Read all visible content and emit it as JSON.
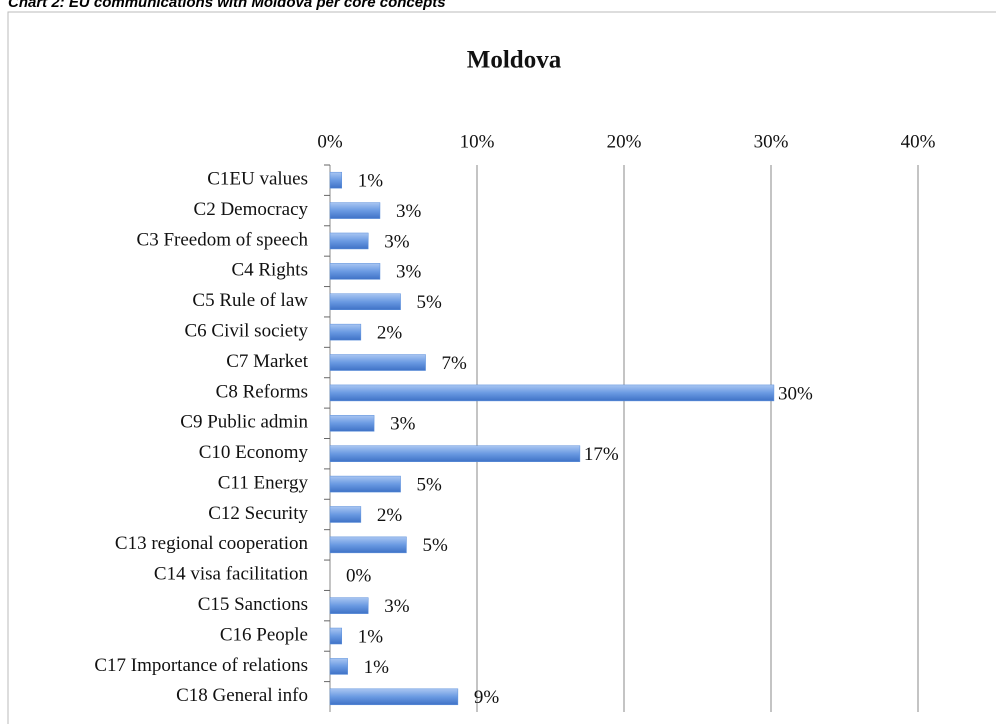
{
  "caption": "Chart 2: EU communications with Moldova per core concepts",
  "chart_data": {
    "type": "hbar",
    "title": "Moldova",
    "categories": [
      "C1EU values",
      "C2 Democracy",
      "C3 Freedom of speech",
      "C4 Rights",
      "C5 Rule of law",
      "C6 Civil society",
      "C7 Market",
      "C8 Reforms",
      "C9 Public admin",
      "C10 Economy",
      "C11 Energy",
      "C12 Security",
      "C13 regional cooperation",
      "C14 visa facilitation",
      "C15 Sanctions",
      "C16 People",
      "C17 Importance of relations",
      "C18 General info"
    ],
    "values": [
      0.8,
      3.4,
      2.6,
      3.4,
      4.8,
      2.1,
      6.5,
      30.2,
      3.0,
      17.0,
      4.8,
      2.1,
      5.2,
      0,
      2.6,
      0.8,
      1.2,
      8.7
    ],
    "value_labels": [
      "1%",
      "3%",
      "3%",
      "3%",
      "5%",
      "2%",
      "7%",
      "30%",
      "3%",
      "17%",
      "5%",
      "2%",
      "5%",
      "0%",
      "3%",
      "1%",
      "1%",
      "9%"
    ],
    "color": "#5b8fdc",
    "xlim": [
      0,
      40
    ],
    "xticks": [
      {
        "value": 0,
        "label": "0%"
      },
      {
        "value": 10,
        "label": "10%"
      },
      {
        "value": 20,
        "label": "20%"
      },
      {
        "value": 30,
        "label": "30%"
      },
      {
        "value": 40,
        "label": "40%"
      }
    ],
    "grid": true
  }
}
